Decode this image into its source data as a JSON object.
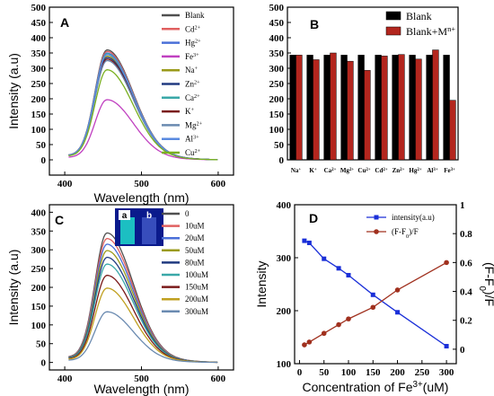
{
  "chart_data": [
    {
      "panel": "A",
      "type": "line",
      "ylabel": "Intensity (a.u)",
      "xlabel": "Wavelength (nm)",
      "xlim": [
        380,
        620
      ],
      "ylim": [
        -50,
        500
      ],
      "xticks": [
        400,
        500,
        600
      ],
      "yticks": [
        0,
        50,
        100,
        150,
        200,
        250,
        300,
        350,
        400,
        450,
        500
      ],
      "legend_position": "top-right",
      "series": [
        {
          "name": "Blank",
          "label_main": "Blank",
          "label_sup": "",
          "peak": 360,
          "color": "#505050"
        },
        {
          "name": "Cd2+",
          "label_main": "Cd",
          "label_sup": "2+",
          "peak": 355,
          "color": "#e06060"
        },
        {
          "name": "Hg2+",
          "label_main": "Hg",
          "label_sup": "2+",
          "peak": 350,
          "color": "#4a6fd8"
        },
        {
          "name": "Fe3+",
          "label_main": "Fe",
          "label_sup": "3+",
          "peak": 197,
          "color": "#c040c0"
        },
        {
          "name": "Na+",
          "label_main": "Na",
          "label_sup": "+",
          "peak": 340,
          "color": "#9a9a1a"
        },
        {
          "name": "Zn2+",
          "label_main": "Zn",
          "label_sup": "2+",
          "peak": 335,
          "color": "#203a80"
        },
        {
          "name": "Ca2+",
          "label_main": "Ca",
          "label_sup": "2+",
          "peak": 348,
          "color": "#3aa8a8"
        },
        {
          "name": "K+",
          "label_main": "K",
          "label_sup": "+",
          "peak": 330,
          "color": "#7a1a1a"
        },
        {
          "name": "Mg2+",
          "label_main": "Mg",
          "label_sup": "2+",
          "peak": 325,
          "color": "#6a8ab0"
        },
        {
          "name": "Al3+",
          "label_main": "Al",
          "label_sup": "3+",
          "peak": 345,
          "color": "#5a8ae0"
        },
        {
          "name": "Cu2+",
          "label_main": "Cu",
          "label_sup": "2+",
          "peak": 295,
          "color": "#7ab020"
        }
      ]
    },
    {
      "panel": "B",
      "type": "bar",
      "ylim": [
        0,
        500
      ],
      "yticks": [
        0,
        50,
        100,
        150,
        200,
        250,
        300,
        350,
        400,
        450,
        500
      ],
      "legend_position": "top-right",
      "categories": [
        {
          "main": "Na",
          "sup": "+"
        },
        {
          "main": "K",
          "sup": "+"
        },
        {
          "main": "Ca",
          "sup": "2+"
        },
        {
          "main": "Mg",
          "sup": "2+"
        },
        {
          "main": "Cu",
          "sup": "2+"
        },
        {
          "main": "Cd",
          "sup": "2+"
        },
        {
          "main": "Zn",
          "sup": "2+"
        },
        {
          "main": "Hg",
          "sup": "2+"
        },
        {
          "main": "Al",
          "sup": "3+"
        },
        {
          "main": "Fe",
          "sup": "3+"
        }
      ],
      "series": [
        {
          "name": "Blank",
          "label_main": "Blank",
          "label_sup": "",
          "color": "#000000",
          "values": [
            343,
            343,
            343,
            343,
            343,
            343,
            343,
            343,
            343,
            343
          ]
        },
        {
          "name": "Blank+Mn+",
          "label_main": "Blank+M",
          "label_sup": "n+",
          "color": "#b3261e",
          "values": [
            343,
            328,
            350,
            323,
            293,
            340,
            345,
            330,
            360,
            195
          ]
        }
      ]
    },
    {
      "panel": "C",
      "type": "line",
      "ylabel": "Intensity (a.u)",
      "xlabel": "Wavelength (nm)",
      "xlim": [
        380,
        620
      ],
      "ylim": [
        -20,
        420
      ],
      "xticks": [
        400,
        500,
        600
      ],
      "yticks": [
        0,
        50,
        100,
        150,
        200,
        250,
        300,
        350,
        400
      ],
      "legend_position": "top-right",
      "inset_labels": [
        "a",
        "b"
      ],
      "series": [
        {
          "name": "0",
          "peak": 345,
          "color": "#505050"
        },
        {
          "name": "10uM",
          "peak": 330,
          "color": "#e06060"
        },
        {
          "name": "20uM",
          "peak": 315,
          "color": "#4a6fd8"
        },
        {
          "name": "50uM",
          "peak": 298,
          "color": "#9a9a1a"
        },
        {
          "name": "80uM",
          "peak": 280,
          "color": "#203a80"
        },
        {
          "name": "100uM",
          "peak": 262,
          "color": "#3aa8a8"
        },
        {
          "name": "150uM",
          "peak": 232,
          "color": "#7a1a1a"
        },
        {
          "name": "200uM",
          "peak": 198,
          "color": "#c0a020"
        },
        {
          "name": "300uM",
          "peak": 135,
          "color": "#6a8ab0"
        }
      ]
    },
    {
      "panel": "D",
      "type": "scatter",
      "ylabel": "Intensity",
      "ylabel_right_main": "(F-F",
      "ylabel_right_sub": "0",
      "ylabel_right_end": ")/F",
      "xlabel_main": "Concentration of Fe",
      "xlabel_sup": "3+",
      "xlabel_end": "(uM)",
      "xlim": [
        -10,
        320
      ],
      "ylim": [
        100,
        400
      ],
      "ylim_right": [
        -0.1,
        1.0
      ],
      "xticks": [
        0,
        50,
        100,
        150,
        200,
        250,
        300
      ],
      "yticks": [
        100,
        200,
        300,
        400
      ],
      "yticks_right": [
        0.0,
        0.2,
        0.4,
        0.6,
        0.8,
        1.0
      ],
      "legend_position": "top-right",
      "x": [
        10,
        20,
        50,
        80,
        100,
        150,
        200,
        300
      ],
      "series": [
        {
          "name": "intensity(a.u)",
          "axis": "left",
          "color": "#1a2fd8",
          "marker": "square",
          "values": [
            332,
            328,
            298,
            280,
            267,
            230,
            197,
            133
          ]
        },
        {
          "name": "(F-F0)/F",
          "label_main": "(F-F",
          "label_sub": "0",
          "label_end": ")/F",
          "axis": "right",
          "color": "#a0301e",
          "marker": "circle",
          "values": [
            0.03,
            0.05,
            0.11,
            0.17,
            0.21,
            0.29,
            0.41,
            0.6
          ]
        }
      ]
    }
  ]
}
